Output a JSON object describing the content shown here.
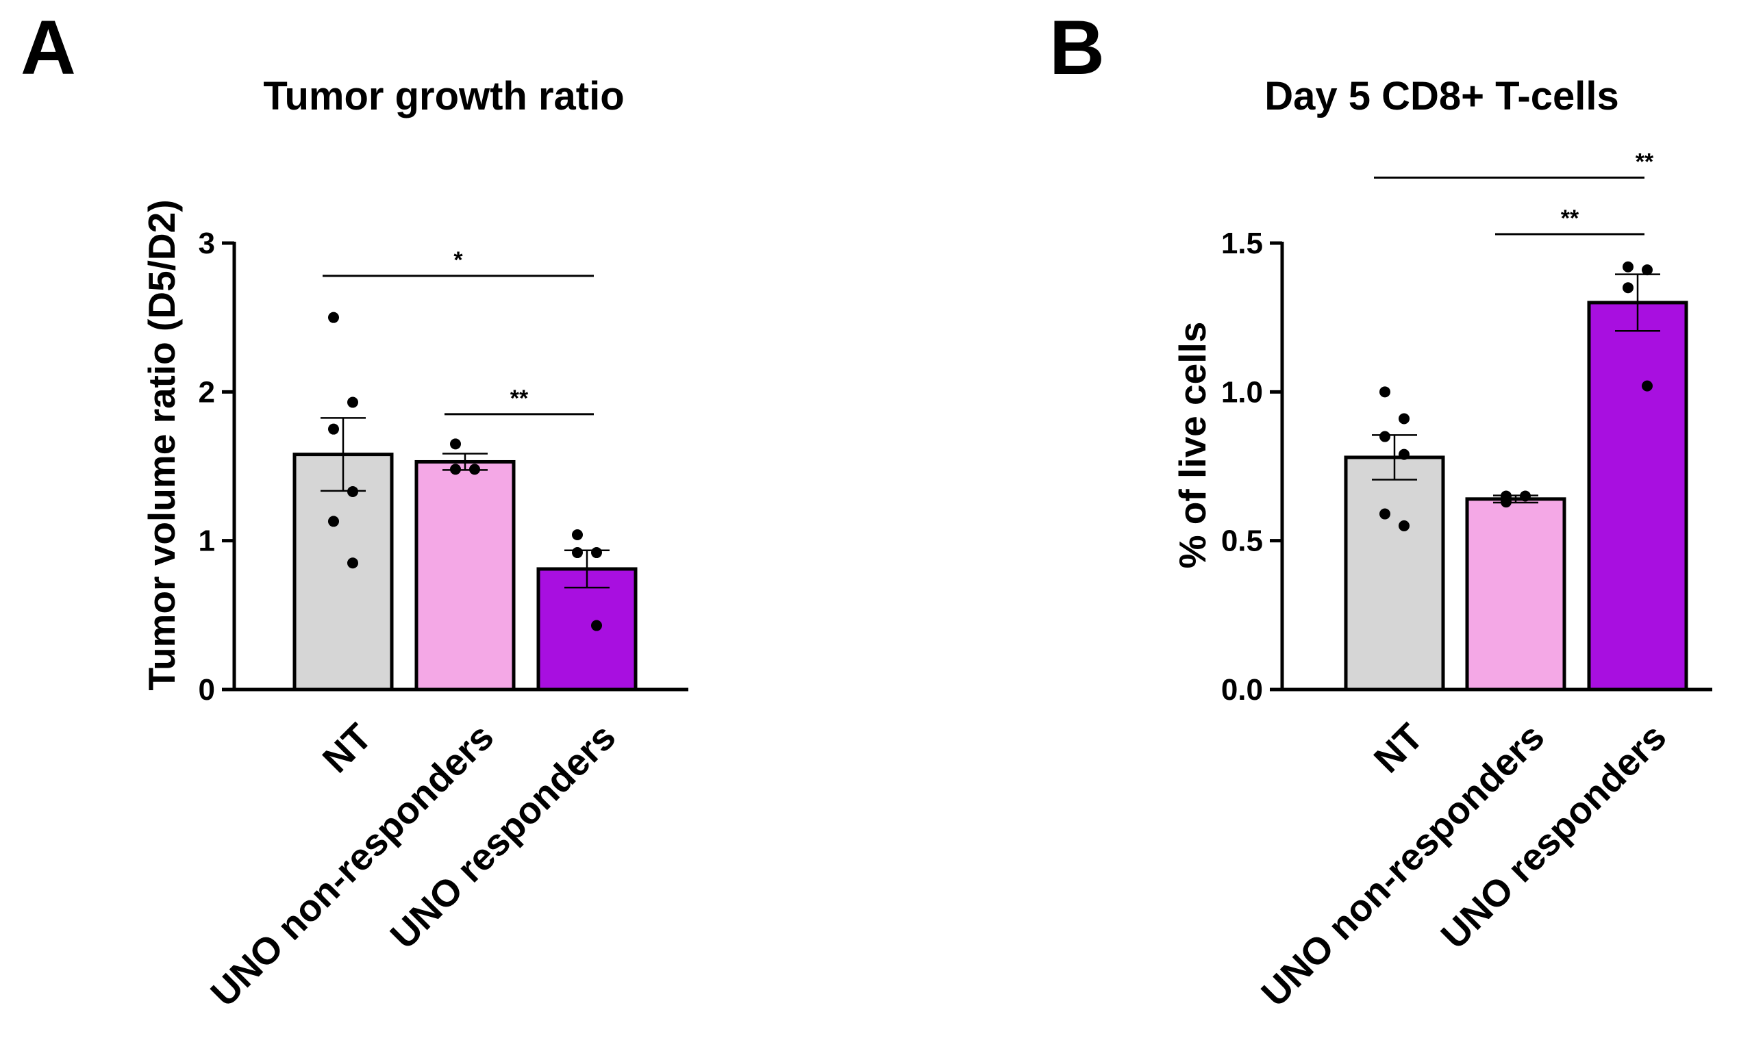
{
  "chart_data": [
    {
      "panel": "A",
      "type": "bar",
      "title": "Tumor growth ratio",
      "xlabel": "",
      "ylabel": "Tumor volume ratio (D5/D2)",
      "ylim": [
        0,
        3
      ],
      "yticks": [
        0,
        1,
        2,
        3
      ],
      "ytick_labels": [
        "0",
        "1",
        "2",
        "3"
      ],
      "categories": [
        "NT",
        "UNO non-responders",
        "UNO responders"
      ],
      "values": [
        1.58,
        1.53,
        0.81
      ],
      "errors": [
        0.245,
        0.055,
        0.125
      ],
      "colors": [
        "#d6d6d6",
        "#f4a8e6",
        "#a80fe0"
      ],
      "points": [
        [
          2.5,
          1.93,
          1.75,
          1.33,
          1.13,
          0.85
        ],
        [
          1.65,
          1.48,
          1.48
        ],
        [
          1.04,
          0.92,
          0.92,
          0.43
        ]
      ],
      "significance": [
        {
          "from": 0,
          "to": 2,
          "label": "*",
          "y": 2.78
        },
        {
          "from": 1,
          "to": 2,
          "label": "**",
          "y": 1.85
        }
      ]
    },
    {
      "panel": "B",
      "type": "bar",
      "title": "Day 5 CD8+ T-cells",
      "xlabel": "",
      "ylabel": "% of live cells",
      "ylim": [
        0,
        1.5
      ],
      "yticks": [
        0,
        0.5,
        1.0,
        1.5
      ],
      "ytick_labels": [
        "0.0",
        "0.5",
        "1.0",
        "1.5"
      ],
      "categories": [
        "NT",
        "UNO non-responders",
        "UNO responders"
      ],
      "values": [
        0.78,
        0.64,
        1.3
      ],
      "errors": [
        0.075,
        0.012,
        0.095
      ],
      "colors": [
        "#d6d6d6",
        "#f4a8e6",
        "#a80fe0"
      ],
      "points": [
        [
          1.0,
          0.91,
          0.85,
          0.79,
          0.59,
          0.55
        ],
        [
          0.65,
          0.65,
          0.63
        ],
        [
          1.42,
          1.41,
          1.35,
          1.02
        ]
      ],
      "significance": [
        {
          "from": 0,
          "to": 2,
          "label": "**",
          "y": 1.72
        },
        {
          "from": 1,
          "to": 2,
          "label": "**",
          "y": 1.53
        }
      ]
    }
  ]
}
